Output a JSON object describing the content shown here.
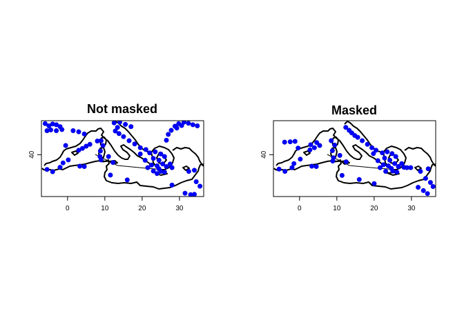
{
  "chart_data": [
    {
      "type": "scatter",
      "title": "Not masked",
      "xlim": [
        -7,
        36.5
      ],
      "ylim": [
        28.7,
        49.2
      ],
      "x_ticks": [
        "0",
        "10",
        "20",
        "30"
      ],
      "y_ticks": [
        "40"
      ],
      "point_color": "#0000ff",
      "points": [
        [
          -6,
          48.4
        ],
        [
          -5,
          47.8
        ],
        [
          -4,
          48.3
        ],
        [
          -3,
          48.1
        ],
        [
          -2,
          47.6
        ],
        [
          -5.5,
          46.5
        ],
        [
          -4.5,
          46.7
        ],
        [
          -3,
          46.5
        ],
        [
          -1.5,
          46.8
        ],
        [
          1.5,
          46.5
        ],
        [
          3,
          46.2
        ],
        [
          4.5,
          45.6
        ],
        [
          12.5,
          48.6
        ],
        [
          13.4,
          47.4
        ],
        [
          12.8,
          46.4
        ],
        [
          13.8,
          45.7
        ],
        [
          15,
          44.9
        ],
        [
          16.5,
          43.8
        ],
        [
          18,
          42.9
        ],
        [
          19.5,
          41.9
        ],
        [
          21,
          41.4
        ],
        [
          14,
          48.8
        ],
        [
          15.5,
          48.2
        ],
        [
          17,
          47.6
        ],
        [
          27,
          45.5
        ],
        [
          26.5,
          43.9
        ],
        [
          27.8,
          46.6
        ],
        [
          28.8,
          47.7
        ],
        [
          29.8,
          48.4
        ],
        [
          31.2,
          48.8
        ],
        [
          32.4,
          48.5
        ],
        [
          33.6,
          48.1
        ],
        [
          34.8,
          47.8
        ],
        [
          29.3,
          47.2
        ],
        [
          30.6,
          47.9
        ],
        [
          3,
          41.2
        ],
        [
          4,
          41.7
        ],
        [
          5,
          42.3
        ],
        [
          6,
          42.8
        ],
        [
          -0.5,
          42.5
        ],
        [
          -1.2,
          37.8
        ],
        [
          0.2,
          38.6
        ],
        [
          8,
          43.7
        ],
        [
          9,
          43.8
        ],
        [
          9.5,
          42.5
        ],
        [
          8.8,
          41
        ],
        [
          8.7,
          39.5
        ],
        [
          9,
          38.6
        ],
        [
          11,
          39.5
        ],
        [
          12.2,
          37.9
        ],
        [
          19.5,
          40.2
        ],
        [
          20.8,
          38.5
        ],
        [
          22,
          40.5
        ],
        [
          23.5,
          40.8
        ],
        [
          25,
          40.2
        ],
        [
          26,
          39.5
        ],
        [
          23,
          39
        ],
        [
          24.5,
          38.5
        ],
        [
          25.5,
          37.5
        ],
        [
          22.5,
          37.2
        ],
        [
          24,
          37
        ],
        [
          26.5,
          36.8
        ],
        [
          27.5,
          37.5
        ],
        [
          28,
          36.5
        ],
        [
          25,
          35.5
        ],
        [
          23,
          35.6
        ],
        [
          24.5,
          36.2
        ],
        [
          26,
          35.3
        ],
        [
          21.5,
          36.5
        ],
        [
          24,
          34.9
        ],
        [
          11.5,
          34.5
        ],
        [
          16,
          33.2
        ],
        [
          -2,
          36.6
        ],
        [
          -4,
          35.4
        ],
        [
          -5.5,
          36
        ],
        [
          4.5,
          36.8
        ],
        [
          3.3,
          36.9
        ],
        [
          32.5,
          35.5
        ],
        [
          34,
          35.8
        ],
        [
          28,
          31.8
        ],
        [
          31.5,
          29.6
        ],
        [
          34.5,
          32.7
        ],
        [
          35.5,
          31.5
        ],
        [
          34,
          29.3
        ],
        [
          33,
          29.2
        ]
      ]
    },
    {
      "type": "scatter",
      "title": "Masked",
      "xlim": [
        -7,
        36.5
      ],
      "ylim": [
        28.7,
        49.2
      ],
      "x_ticks": [
        "0",
        "10",
        "20",
        "30"
      ],
      "y_ticks": [
        "40"
      ],
      "point_color": "#0000ff",
      "points": [
        [
          -4,
          43.4
        ],
        [
          -2.5,
          43.5
        ],
        [
          -1.2,
          43.6
        ],
        [
          -0.4,
          41.8
        ],
        [
          -1.5,
          37.6
        ],
        [
          0.2,
          38.8
        ],
        [
          2.8,
          41.3
        ],
        [
          4,
          41.9
        ],
        [
          5.4,
          42.5
        ],
        [
          4.6,
          43.3
        ],
        [
          3,
          42.7
        ],
        [
          8.5,
          43.8
        ],
        [
          9.4,
          42.6
        ],
        [
          8.8,
          41.1
        ],
        [
          9.1,
          39.2
        ],
        [
          8.9,
          38.3
        ],
        [
          10.8,
          39.8
        ],
        [
          12.5,
          38.1
        ],
        [
          12.4,
          47.4
        ],
        [
          13.3,
          46.6
        ],
        [
          14,
          45.9
        ],
        [
          14.8,
          45.2
        ],
        [
          15.6,
          44.7
        ],
        [
          16.8,
          43.8
        ],
        [
          18.2,
          42.8
        ],
        [
          19.4,
          41.9
        ],
        [
          20.5,
          41.2
        ],
        [
          19.8,
          40.3
        ],
        [
          21,
          38.4
        ],
        [
          22.2,
          40.5
        ],
        [
          23.5,
          40.8
        ],
        [
          24.8,
          40.3
        ],
        [
          25.8,
          39.5
        ],
        [
          22.8,
          39.1
        ],
        [
          24.2,
          38.5
        ],
        [
          25.5,
          37.6
        ],
        [
          22.5,
          37.3
        ],
        [
          23.8,
          37
        ],
        [
          26.5,
          36.8
        ],
        [
          27.4,
          37.6
        ],
        [
          28,
          36.6
        ],
        [
          25,
          35.6
        ],
        [
          23.1,
          35.5
        ],
        [
          24.6,
          36.3
        ],
        [
          26.1,
          35.3
        ],
        [
          21.6,
          36.5
        ],
        [
          28.8,
          36.5
        ],
        [
          29.8,
          36.5
        ],
        [
          -5.5,
          36.1
        ],
        [
          -3.9,
          35.5
        ],
        [
          -2,
          36.5
        ],
        [
          3.3,
          36.9
        ],
        [
          4.5,
          36.8
        ],
        [
          11.4,
          34.4
        ],
        [
          16,
          33.3
        ],
        [
          20,
          32.2
        ],
        [
          32.4,
          35.5
        ],
        [
          34.5,
          36.2
        ],
        [
          33.8,
          33.6
        ],
        [
          35.1,
          32.5
        ],
        [
          35.8,
          31.4
        ],
        [
          31.8,
          31.2
        ],
        [
          33.2,
          30.3
        ],
        [
          34.3,
          29.5
        ]
      ]
    }
  ]
}
